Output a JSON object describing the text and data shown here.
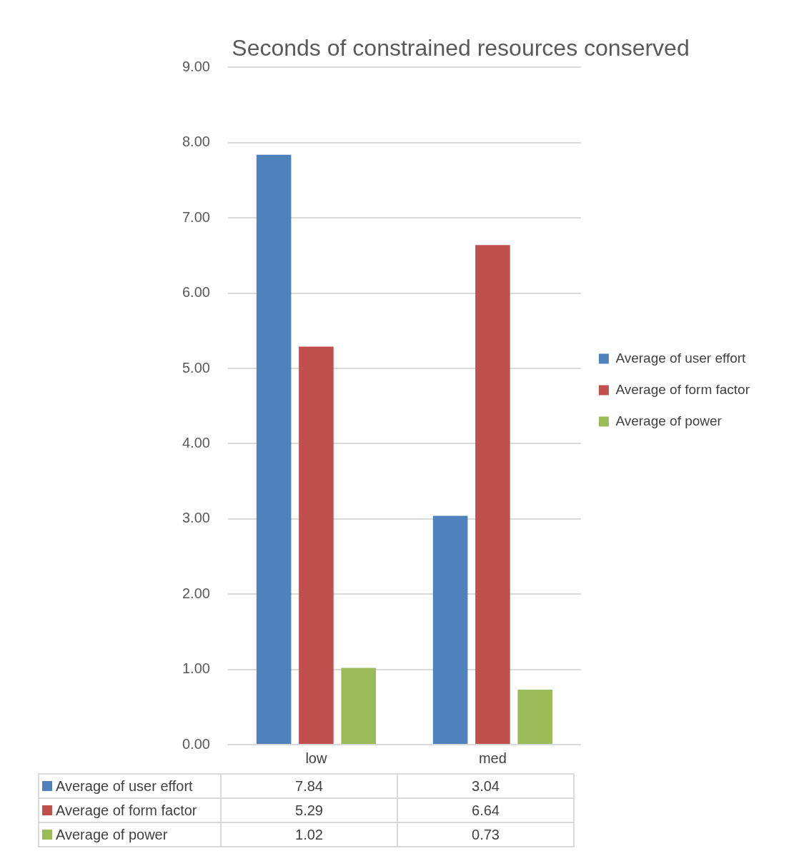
{
  "chart_data": {
    "type": "bar",
    "title": "Seconds of constrained resources conserved",
    "categories": [
      "low",
      "med"
    ],
    "series": [
      {
        "name": "Average of user effort",
        "color": "#4f81bd",
        "values": [
          7.84,
          3.04
        ]
      },
      {
        "name": "Average of form factor",
        "color": "#c0504d",
        "values": [
          5.29,
          6.64
        ]
      },
      {
        "name": "Average of power",
        "color": "#9bbb59",
        "values": [
          1.02,
          0.73
        ]
      }
    ],
    "ylim": [
      0,
      9
    ],
    "yticks": [
      {
        "value": 0,
        "label": "0.00"
      },
      {
        "value": 1,
        "label": "1.00"
      },
      {
        "value": 2,
        "label": "2.00"
      },
      {
        "value": 3,
        "label": "3.00"
      },
      {
        "value": 4,
        "label": "4.00"
      },
      {
        "value": 5,
        "label": "5.00"
      },
      {
        "value": 6,
        "label": "6.00"
      },
      {
        "value": 7,
        "label": "7.00"
      },
      {
        "value": 8,
        "label": "8.00"
      },
      {
        "value": 9,
        "label": "9.00"
      }
    ],
    "grid": "y",
    "legend": "right",
    "data_labels": true
  }
}
